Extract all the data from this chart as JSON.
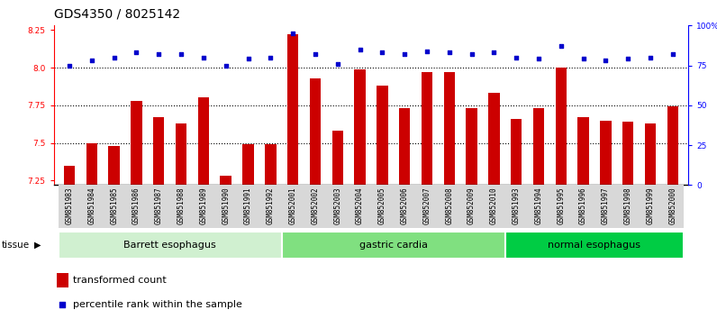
{
  "title": "GDS4350 / 8025142",
  "samples": [
    "GSM851983",
    "GSM851984",
    "GSM851985",
    "GSM851986",
    "GSM851987",
    "GSM851988",
    "GSM851989",
    "GSM851990",
    "GSM851991",
    "GSM851992",
    "GSM852001",
    "GSM852002",
    "GSM852003",
    "GSM852004",
    "GSM852005",
    "GSM852006",
    "GSM852007",
    "GSM852008",
    "GSM852009",
    "GSM852010",
    "GSM851993",
    "GSM851994",
    "GSM851995",
    "GSM851996",
    "GSM851997",
    "GSM851998",
    "GSM851999",
    "GSM852000"
  ],
  "bar_values": [
    7.35,
    7.5,
    7.48,
    7.78,
    7.67,
    7.63,
    7.8,
    7.28,
    7.49,
    7.49,
    8.22,
    7.93,
    7.58,
    7.99,
    7.88,
    7.73,
    7.97,
    7.97,
    7.73,
    7.83,
    7.66,
    7.73,
    8.0,
    7.67,
    7.65,
    7.64,
    7.63,
    7.74
  ],
  "percentile_values": [
    75,
    78,
    80,
    83,
    82,
    82,
    80,
    75,
    79,
    80,
    95,
    82,
    76,
    85,
    83,
    82,
    84,
    83,
    82,
    83,
    80,
    79,
    87,
    79,
    78,
    79,
    80,
    82
  ],
  "tissue_groups": [
    {
      "label": "Barrett esophagus",
      "start": 0,
      "end": 10,
      "color": "#d0f0d0"
    },
    {
      "label": "gastric cardia",
      "start": 10,
      "end": 20,
      "color": "#80e080"
    },
    {
      "label": "normal esophagus",
      "start": 20,
      "end": 28,
      "color": "#00cc44"
    }
  ],
  "ylim_left": [
    7.22,
    8.28
  ],
  "ylim_right": [
    0,
    100
  ],
  "yticks_left": [
    7.25,
    7.5,
    7.75,
    8.0,
    8.25
  ],
  "yticks_right": [
    0,
    25,
    50,
    75,
    100
  ],
  "ytick_right_labels": [
    "0",
    "25",
    "50",
    "75",
    "100%"
  ],
  "hlines": [
    7.5,
    7.75,
    8.0
  ],
  "bar_color": "#cc0000",
  "dot_color": "#0000cc",
  "bar_width": 0.5,
  "legend_items": [
    {
      "label": "transformed count",
      "color": "#cc0000"
    },
    {
      "label": "percentile rank within the sample",
      "color": "#0000cc"
    }
  ],
  "tissue_label": "tissue",
  "background_color": "#ffffff",
  "title_fontsize": 10,
  "tick_fontsize": 6.5,
  "tissue_fontsize": 8
}
